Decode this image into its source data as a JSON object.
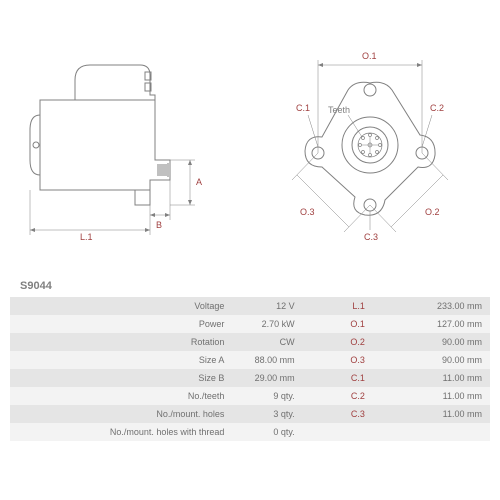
{
  "part_number": "S9044",
  "diagrams": {
    "left": {
      "dim_labels": {
        "L1": "L.1",
        "A": "A",
        "B": "B"
      }
    },
    "right": {
      "dim_labels": {
        "O1": "O.1",
        "O2": "O.2",
        "O3": "O.3",
        "C1": "C.1",
        "C2": "C.2",
        "C3": "C.3",
        "teeth": "Teeth"
      }
    }
  },
  "specs": {
    "rows": [
      {
        "label": "Voltage",
        "value": "12 V",
        "label2": "L.1",
        "value2": "233.00 mm"
      },
      {
        "label": "Power",
        "value": "2.70 kW",
        "label2": "O.1",
        "value2": "127.00 mm"
      },
      {
        "label": "Rotation",
        "value": "CW",
        "label2": "O.2",
        "value2": "90.00 mm"
      },
      {
        "label": "Size A",
        "value": "88.00 mm",
        "label2": "O.3",
        "value2": "90.00 mm"
      },
      {
        "label": "Size B",
        "value": "29.00 mm",
        "label2": "C.1",
        "value2": "11.00 mm"
      },
      {
        "label": "No./teeth",
        "value": "9 qty.",
        "label2": "C.2",
        "value2": "11.00 mm"
      },
      {
        "label": "No./mount. holes",
        "value": "3 qty.",
        "label2": "C.3",
        "value2": "11.00 mm"
      },
      {
        "label": "No./mount. holes with thread",
        "value": "0 qty.",
        "label2": "",
        "value2": ""
      }
    ]
  },
  "colors": {
    "line": "#808080",
    "accent": "#a04040",
    "row_odd": "#e5e5e5",
    "row_even": "#f3f3f3"
  }
}
